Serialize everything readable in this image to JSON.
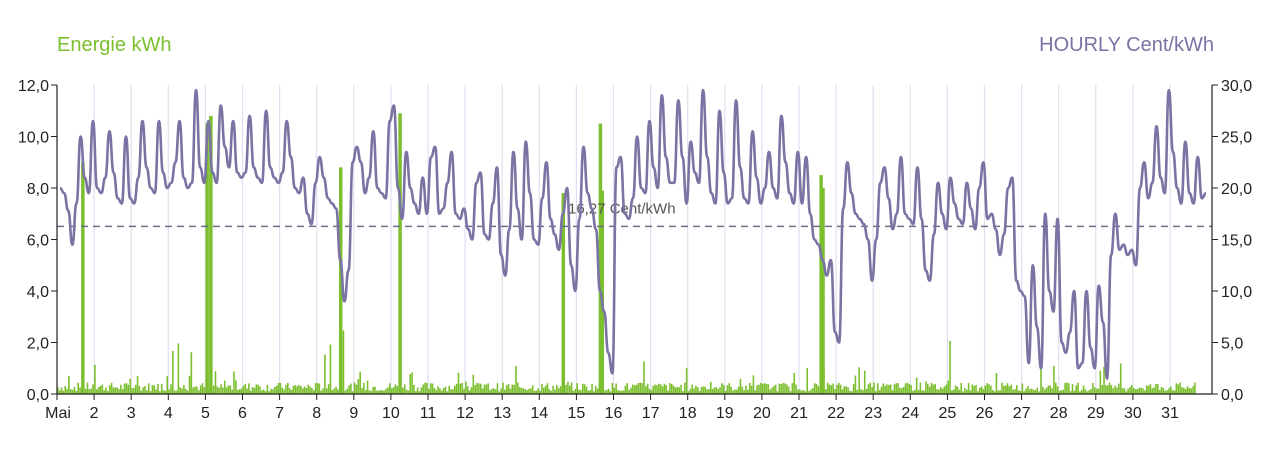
{
  "chart_data": {
    "type": "bar+line",
    "left_axis_label": "Energie kWh",
    "right_axis_label": "HOURLY Cent/kWh",
    "left_ylim": [
      0,
      12
    ],
    "left_ticks": [
      "0,0",
      "2,0",
      "4,0",
      "6,0",
      "8,0",
      "10,0",
      "12,0"
    ],
    "right_ylim": [
      0,
      30
    ],
    "right_ticks": [
      "0,0",
      "5,0",
      "10,0",
      "15,0",
      "20,0",
      "25,0",
      "30,0"
    ],
    "x_ticks": [
      "Mai",
      "2",
      "3",
      "4",
      "5",
      "6",
      "7",
      "8",
      "9",
      "10",
      "11",
      "12",
      "13",
      "14",
      "15",
      "16",
      "17",
      "18",
      "19",
      "20",
      "21",
      "22",
      "23",
      "24",
      "25",
      "26",
      "27",
      "28",
      "29",
      "30",
      "31"
    ],
    "reference_line": {
      "value": 16.27,
      "label": "16,27 Cent/kWh"
    },
    "colors": {
      "energy": "#7cbf2e",
      "price": "#7a73a3",
      "reference": "#6c6f8a",
      "grid": "#dde0ef"
    },
    "series": [
      {
        "name": "Energie kWh",
        "axis": "left",
        "x": [
          1.65,
          5.0,
          5.1,
          8.6,
          10.2,
          14.6,
          15.6,
          15.65,
          21.55,
          21.6
        ],
        "values": [
          9.0,
          10.5,
          10.8,
          8.8,
          10.9,
          7.8,
          10.5,
          7.9,
          8.5,
          8.0
        ],
        "baseline_daily_peak": [
          0.8,
          0.9,
          1.1,
          2.2,
          0.6,
          1.2,
          1.0,
          3.5,
          0.9,
          1.2,
          0.7,
          0.8,
          1.0,
          1.8,
          0.6,
          2.8,
          0.9,
          0.8,
          0.7,
          0.9,
          0.8,
          0.9,
          0.8,
          1.0,
          2.0,
          0.8,
          0.9,
          0.8,
          0.9,
          1.0,
          1.6
        ]
      },
      {
        "name": "HOURLY Cent/kWh",
        "axis": "right",
        "day_points": [
          [
            20.0,
            19.5,
            17.8,
            14.5,
            18.5,
            25.0,
            21.0,
            19.5,
            26.5
          ],
          [
            20.0,
            19.5,
            21.0,
            25.5,
            21.5,
            19.0,
            18.5,
            25.0,
            19.0
          ],
          [
            18.5,
            21.0,
            26.5,
            22.0,
            20.0,
            19.5,
            26.5,
            21.5,
            20.0
          ],
          [
            20.5,
            22.5,
            26.5,
            21.0,
            20.0,
            20.5,
            29.5,
            22.0,
            20.5
          ],
          [
            26.5,
            21.5,
            20.5,
            28.0,
            24.0,
            22.0,
            26.5,
            21.5,
            21.0
          ],
          [
            21.5,
            27.0,
            22.0,
            21.0,
            20.5,
            27.5,
            22.0,
            21.0,
            20.5
          ],
          [
            21.5,
            26.5,
            23.0,
            20.0,
            19.5,
            21.0,
            17.5,
            16.5,
            20.5
          ],
          [
            23.0,
            21.0,
            19.0,
            18.5,
            18.0,
            13.0,
            9.0,
            12.0,
            22.5
          ],
          [
            24.0,
            22.5,
            19.5,
            21.0,
            25.5,
            20.0,
            19.5,
            19.0,
            26.5
          ],
          [
            28.0,
            20.0,
            17.0,
            23.5,
            20.0,
            18.5,
            17.5,
            21.0,
            17.5
          ],
          [
            23.0,
            24.0,
            17.5,
            18.0,
            20.5,
            23.5,
            17.5,
            17.0,
            18.0
          ],
          [
            16.0,
            15.0,
            20.5,
            21.5,
            15.5,
            15.0,
            18.5,
            22.0,
            13.5
          ],
          [
            11.5,
            16.0,
            23.5,
            18.0,
            15.0,
            24.5,
            19.5,
            15.0,
            14.5
          ],
          [
            19.0,
            22.5,
            17.0,
            15.5,
            14.0,
            17.5,
            20.0,
            12.5,
            10.0
          ],
          [
            17.0,
            24.0,
            19.5,
            18.0,
            16.0,
            10.0,
            8.0,
            4.0,
            2.0
          ],
          [
            22.0,
            23.0,
            17.5,
            17.0,
            19.0,
            25.0,
            20.0,
            19.5,
            26.5
          ],
          [
            22.0,
            20.0,
            29.0,
            23.0,
            20.5,
            20.5,
            28.5,
            23.0,
            18.5
          ],
          [
            24.5,
            21.5,
            20.5,
            29.5,
            23.0,
            19.5,
            18.5,
            27.5,
            21.5
          ],
          [
            18.5,
            19.0,
            28.5,
            22.0,
            19.0,
            18.5,
            25.5,
            21.0,
            18.5
          ],
          [
            20.0,
            23.5,
            20.0,
            19.0,
            27.0,
            22.5,
            19.5,
            18.5,
            23.5
          ],
          [
            18.5,
            23.0,
            17.5,
            15.0,
            14.5,
            13.0,
            11.5,
            13.0,
            6.0
          ],
          [
            5.0,
            18.0,
            22.5,
            19.5,
            17.5,
            17.0,
            16.5,
            15.0,
            11.0
          ],
          [
            15.0,
            20.5,
            22.0,
            19.0,
            16.0,
            17.5,
            23.0,
            17.5,
            17.0
          ],
          [
            16.5,
            22.0,
            17.0,
            12.0,
            11.0,
            15.5,
            20.5,
            17.5,
            16.0
          ],
          [
            21.0,
            18.5,
            17.0,
            16.5,
            20.5,
            18.0,
            16.0,
            20.0,
            22.5
          ],
          [
            17.0,
            17.5,
            16.0,
            13.5,
            15.5,
            20.0,
            21.0,
            11.0,
            10.0
          ],
          [
            9.5,
            3.0,
            12.5,
            6.5,
            2.5,
            17.5,
            10.0,
            8.0,
            17.0
          ],
          [
            5.0,
            4.0,
            6.0,
            10.0,
            2.5,
            3.0,
            10.0,
            4.5,
            2.5
          ],
          [
            10.5,
            7.0,
            1.5,
            13.5,
            17.5,
            14.0,
            14.5,
            13.5,
            14.0
          ],
          [
            12.5,
            20.0,
            22.5,
            19.0,
            20.5,
            26.0,
            21.0,
            19.5,
            29.5
          ],
          [
            23.5,
            20.0,
            18.5,
            24.5,
            19.5,
            18.5,
            23.0,
            19.0,
            19.5
          ]
        ]
      }
    ]
  }
}
